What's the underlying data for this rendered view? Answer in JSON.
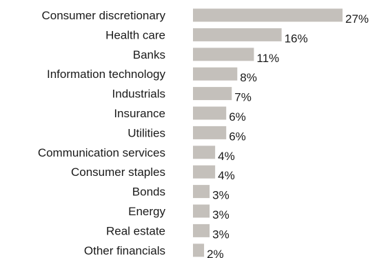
{
  "chart_data": {
    "type": "bar",
    "orientation": "horizontal",
    "categories": [
      "Consumer discretionary",
      "Health care",
      "Banks",
      "Information technology",
      "Industrials",
      "Insurance",
      "Utilities",
      "Communication services",
      "Consumer staples",
      "Bonds",
      "Energy",
      "Real estate",
      "Other financials"
    ],
    "values": [
      27,
      16,
      11,
      8,
      7,
      6,
      6,
      4,
      4,
      3,
      3,
      3,
      2
    ],
    "value_labels": [
      "27%",
      "16%",
      "11%",
      "8%",
      "7%",
      "6%",
      "6%",
      "4%",
      "4%",
      "3%",
      "3%",
      "3%",
      "2%"
    ],
    "unit": "%",
    "title": "",
    "xlabel": "",
    "ylabel": "",
    "xlim": [
      0,
      27
    ],
    "grid": false,
    "legend": "none",
    "bar_color": "#c4c0bb",
    "text_color": "#1a1a1a"
  }
}
